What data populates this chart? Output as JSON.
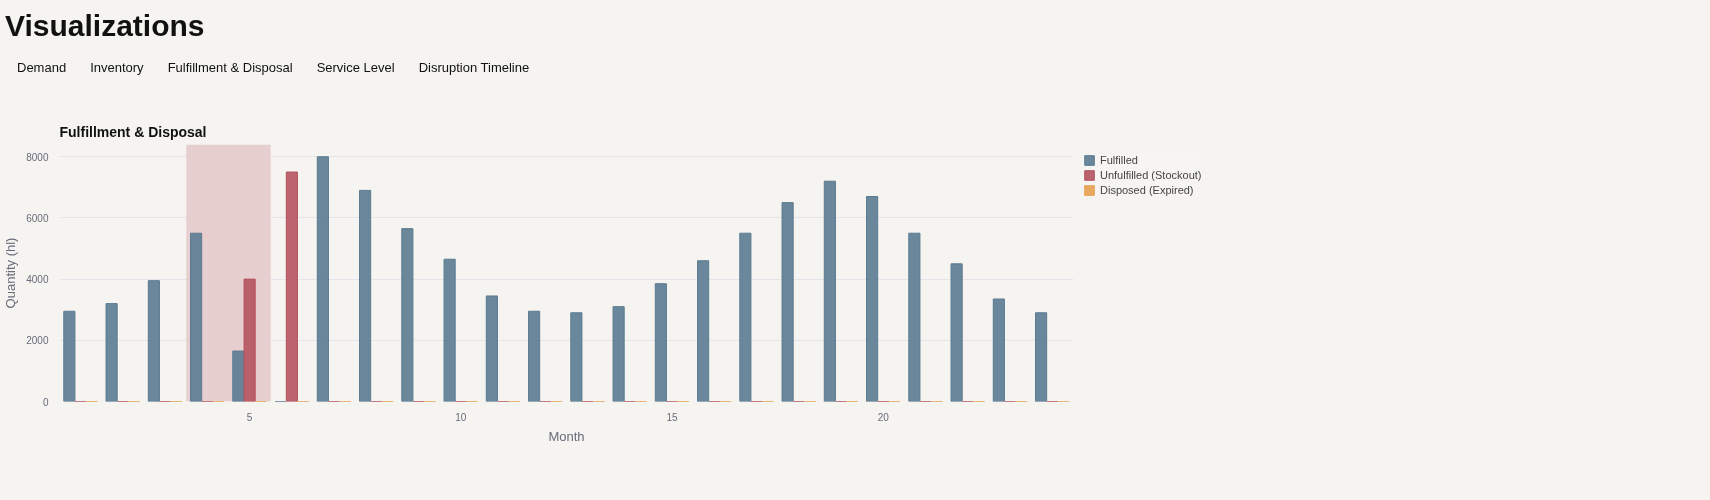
{
  "chart_data": {
    "type": "bar",
    "title": "Fulfillment & Disposal",
    "annotations": [
      "Visualizations",
      "Demand",
      "Inventory",
      "Fulfillment & Disposal",
      "Service Level",
      "Disruption Timeline"
    ],
    "xlabel": "Month",
    "ylabel": "Quantity (hl)",
    "x": [
      1,
      2,
      3,
      4,
      5,
      6,
      7,
      8,
      9,
      10,
      11,
      12,
      13,
      14,
      15,
      16,
      17,
      18,
      19,
      20,
      21,
      22,
      23,
      24
    ],
    "series": [
      {
        "name": "Fulfilled",
        "color": "#5b7b91",
        "values": [
          2950,
          3200,
          3950,
          5500,
          1650,
          0,
          8000,
          6900,
          5650,
          4650,
          3450,
          2950,
          2900,
          3100,
          3850,
          4600,
          5500,
          6500,
          7200,
          6700,
          5500,
          4500,
          3350,
          2900
        ]
      },
      {
        "name": "Unfulfilled (Stockout)",
        "color": "#b5535f",
        "values": [
          0,
          0,
          0,
          0,
          4000,
          7500,
          0,
          0,
          0,
          0,
          0,
          0,
          0,
          0,
          0,
          0,
          0,
          0,
          0,
          0,
          0,
          0,
          0,
          0
        ]
      },
      {
        "name": "Disposed (Expired)",
        "color": "#e8a050",
        "values": [
          0,
          0,
          0,
          0,
          0,
          0,
          0,
          0,
          0,
          0,
          0,
          0,
          0,
          0,
          0,
          0,
          0,
          0,
          0,
          0,
          0,
          0,
          0,
          0
        ]
      }
    ],
    "bands": [
      {
        "axis": "x",
        "from": 3.5,
        "to": 5.5,
        "color": "#e8cfcf"
      }
    ],
    "xlim": [
      0.5,
      24.5
    ],
    "xticks": [
      5,
      10,
      15,
      20
    ],
    "ylim": [
      0,
      8400
    ],
    "yticks": [
      0,
      2000,
      4000,
      6000,
      8000
    ],
    "grid": "y",
    "legend": "top right"
  }
}
